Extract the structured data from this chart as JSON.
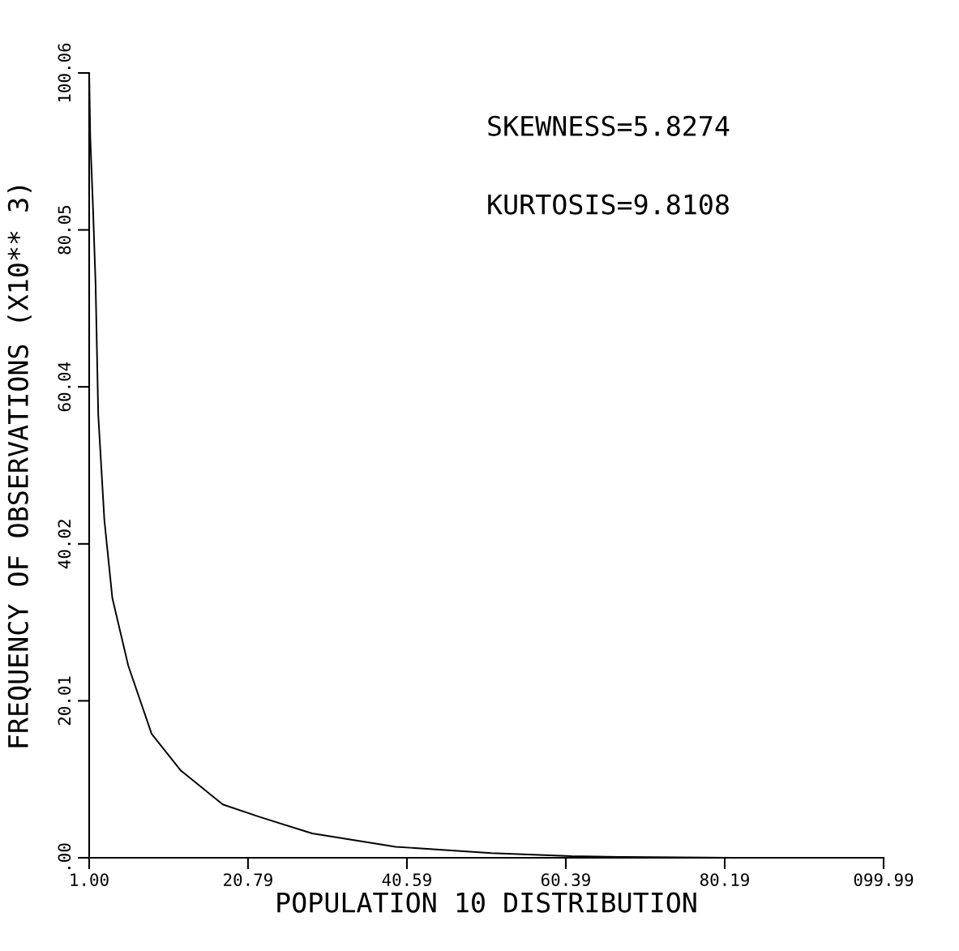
{
  "chart_data": {
    "type": "line",
    "xlabel": "POPULATION 10 DISTRIBUTION",
    "ylabel": "FREQUENCY OF OBSERVATIONS (X10** 3)",
    "annotations": [
      "SKEWNESS=5.8274",
      "KURTOSIS=9.8108"
    ],
    "x": [
      1.0,
      1.14,
      1.47,
      1.8,
      2.13,
      2.89,
      3.89,
      5.87,
      8.78,
      12.43,
      17.65,
      22.24,
      28.8,
      39.2,
      51.1,
      61.1,
      68.1,
      81.1,
      99.99
    ],
    "series": [
      {
        "color": "#000000",
        "values": [
          100.0,
          91.8,
          83.1,
          73.1,
          56.5,
          43.1,
          33.1,
          24.5,
          15.8,
          11.1,
          6.8,
          5.2,
          3.1,
          1.4,
          0.6,
          0.2,
          0.1,
          0,
          0
        ]
      }
    ],
    "xlim": [
      1.0,
      99.99
    ],
    "ylim": [
      0,
      100.06
    ],
    "xticks": [
      {
        "value": 1.0,
        "label": "1.00"
      },
      20.79,
      40.59,
      60.39,
      80.19,
      {
        "value": 99.99,
        "label": "099.99"
      }
    ],
    "yticks": [
      {
        "value": 0,
        "label": ".00"
      },
      20.01,
      40.02,
      60.04,
      80.05,
      100.06
    ],
    "grid": false,
    "legend": false,
    "marker": "none",
    "line_style": "solid"
  }
}
